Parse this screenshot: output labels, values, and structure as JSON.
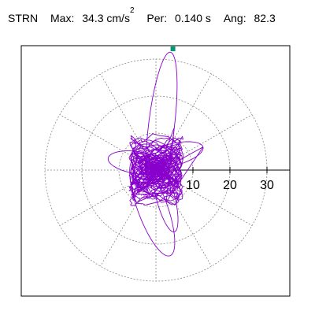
{
  "header": {
    "station": "STRN",
    "max_label": "Max:",
    "max_value": "34.3",
    "max_unit": "cm/s",
    "max_unit_sup": "2",
    "per_label": "Per:",
    "per_value": "0.140 s",
    "ang_label": "Ang:",
    "ang_value": "82.3"
  },
  "chart_data": {
    "type": "polar-particle-motion",
    "radial_ticks": [
      10,
      20,
      30
    ],
    "radial_max": 34.3,
    "peak_angle_deg": 82.3,
    "grid": true,
    "colors": {
      "trace": "#8800cc",
      "peak_marker": "#009977",
      "grid": "#888888",
      "axes": "#000000"
    }
  }
}
